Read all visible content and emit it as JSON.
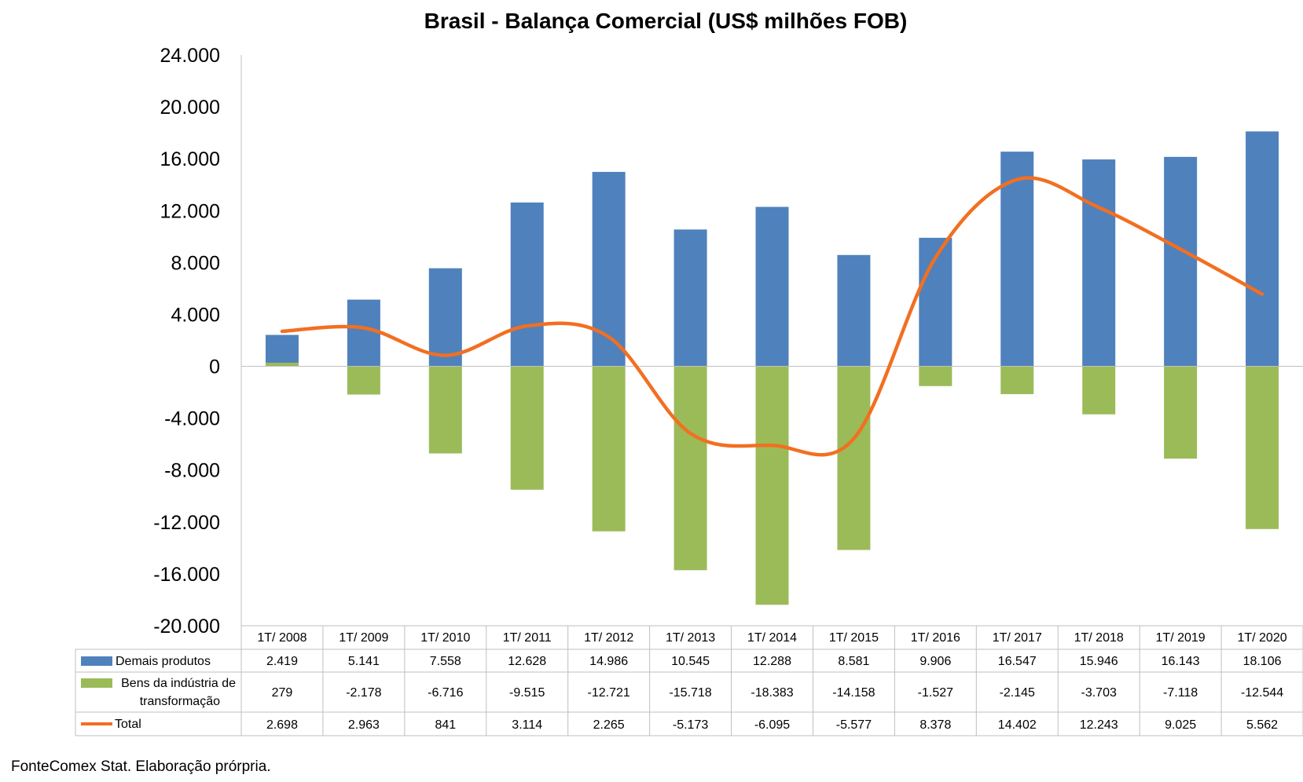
{
  "chart_data": {
    "type": "bar",
    "title": "Brasil - Balança Comercial (US$ milhões FOB)",
    "categories": [
      "1T/ 2008",
      "1T/ 2009",
      "1T/ 2010",
      "1T/ 2011",
      "1T/ 2012",
      "1T/ 2013",
      "1T/ 2014",
      "1T/ 2015",
      "1T/ 2016",
      "1T/ 2017",
      "1T/ 2018",
      "1T/ 2019",
      "1T/ 2020"
    ],
    "ylim": [
      -20000,
      24000
    ],
    "ytick_values": [
      24000,
      20000,
      16000,
      12000,
      8000,
      4000,
      0,
      -4000,
      -8000,
      -12000,
      -16000,
      -20000
    ],
    "ytick_labels": [
      "24.000",
      "20.000",
      "16.000",
      "12.000",
      "8.000",
      "4.000",
      "0",
      "-4.000",
      "-8.000",
      "-12.000",
      "-16.000",
      "-20.000"
    ],
    "series": [
      {
        "name": "Demais produtos",
        "kind": "bar",
        "color": "#4F81BD",
        "values": [
          2419,
          5141,
          7558,
          12628,
          14986,
          10545,
          12288,
          8581,
          9906,
          16547,
          15946,
          16143,
          18106
        ],
        "labels": [
          "2.419",
          "5.141",
          "7.558",
          "12.628",
          "14.986",
          "10.545",
          "12.288",
          "8.581",
          "9.906",
          "16.547",
          "15.946",
          "16.143",
          "18.106"
        ]
      },
      {
        "name_lines": [
          "Bens da indústria de",
          "transformação"
        ],
        "kind": "bar",
        "color": "#9BBB59",
        "values": [
          279,
          -2178,
          -6716,
          -9515,
          -12721,
          -15718,
          -18383,
          -14158,
          -1527,
          -2145,
          -3703,
          -7118,
          -12544
        ],
        "labels": [
          "279",
          "-2.178",
          "-6.716",
          "-9.515",
          "-12.721",
          "-15.718",
          "-18.383",
          "-14.158",
          "-1.527",
          "-2.145",
          "-3.703",
          "-7.118",
          "-12.544"
        ]
      },
      {
        "name": "Total",
        "kind": "line",
        "color": "#F26F21",
        "values": [
          2698,
          2963,
          841,
          3114,
          2265,
          -5173,
          -6095,
          -5577,
          8378,
          14402,
          12243,
          9025,
          5562
        ],
        "labels": [
          "2.698",
          "2.963",
          "841",
          "3.114",
          "2.265",
          "-5.173",
          "-6.095",
          "-5.577",
          "8.378",
          "14.402",
          "12.243",
          "9.025",
          "5.562"
        ]
      }
    ],
    "data_table": true,
    "grid": false
  },
  "source_note": "FonteComex Stat. Elaboração prórpria."
}
